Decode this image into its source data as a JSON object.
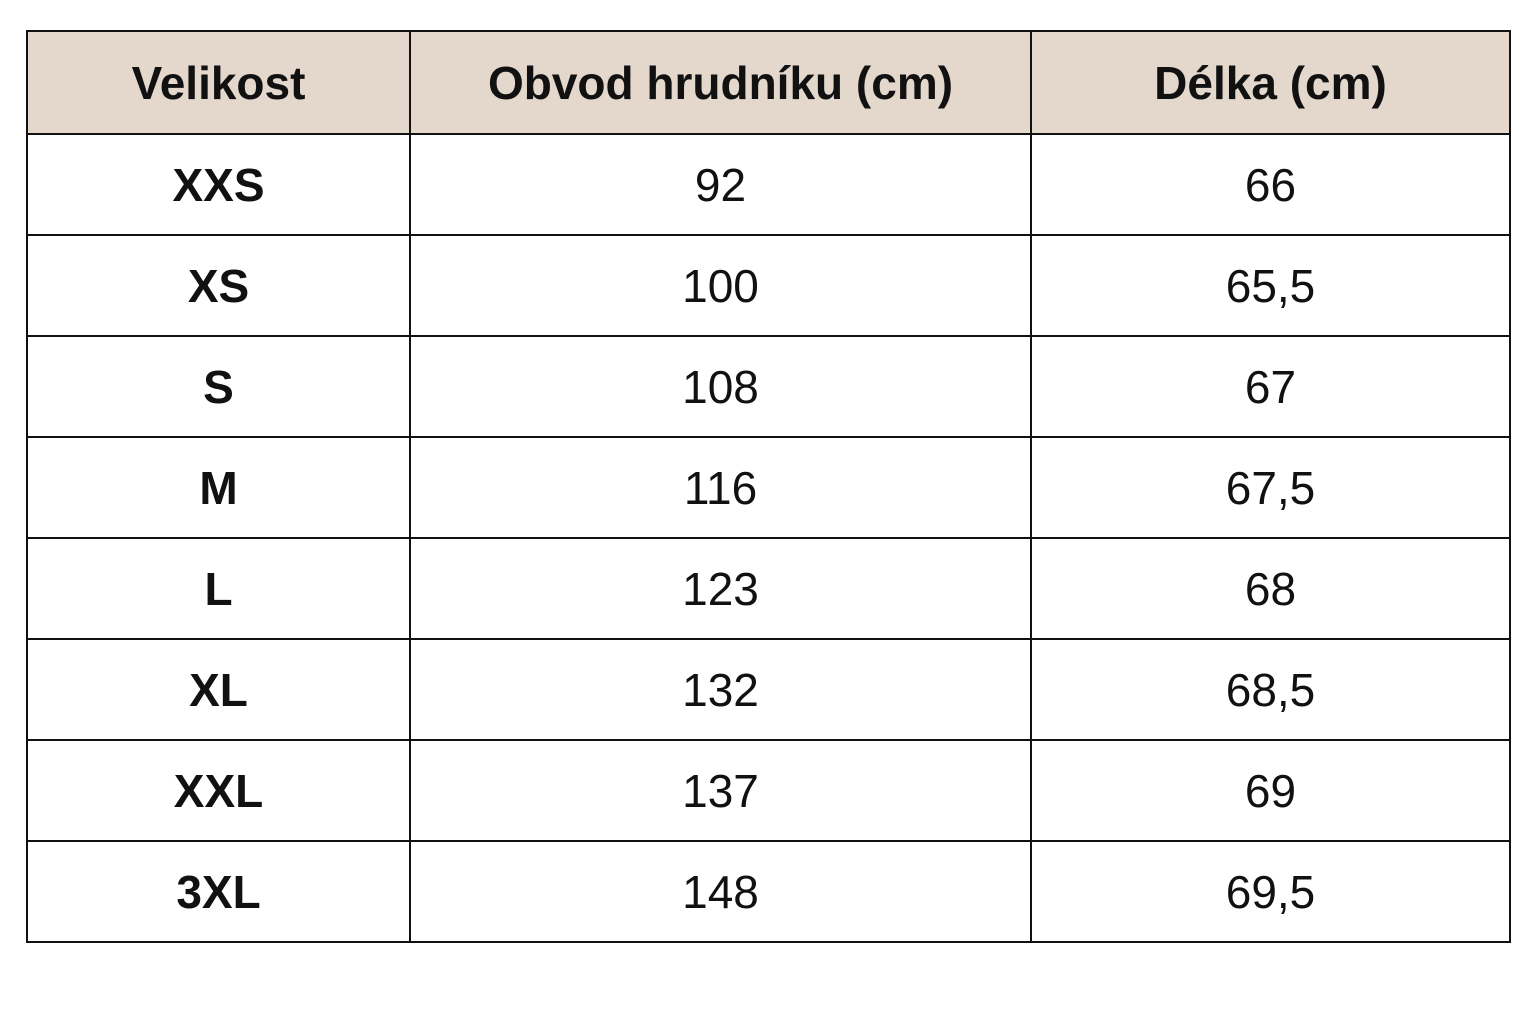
{
  "table": {
    "header": [
      "Velikost",
      "Obvod hrudníku (cm)",
      "Délka (cm)"
    ],
    "rows": [
      [
        "XXS",
        "92",
        "66"
      ],
      [
        "XS",
        "100",
        "65,5"
      ],
      [
        "S",
        "108",
        "67"
      ],
      [
        "M",
        "116",
        "67,5"
      ],
      [
        "L",
        "123",
        "68"
      ],
      [
        "XL",
        "132",
        "68,5"
      ],
      [
        "XXL",
        "137",
        "69"
      ],
      [
        "3XL",
        "148",
        "69,5"
      ]
    ]
  }
}
